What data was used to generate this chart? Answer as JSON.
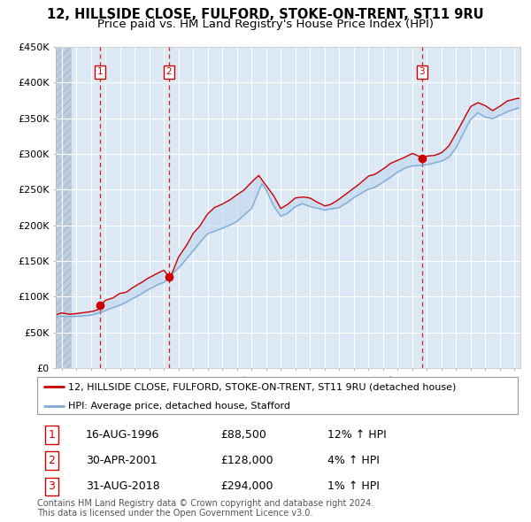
{
  "title": "12, HILLSIDE CLOSE, FULFORD, STOKE-ON-TRENT, ST11 9RU",
  "subtitle": "Price paid vs. HM Land Registry's House Price Index (HPI)",
  "ylim": [
    0,
    450000
  ],
  "yticks": [
    0,
    50000,
    100000,
    150000,
    200000,
    250000,
    300000,
    350000,
    400000,
    450000
  ],
  "ytick_labels": [
    "£0",
    "£50K",
    "£100K",
    "£150K",
    "£200K",
    "£250K",
    "£300K",
    "£350K",
    "£400K",
    "£450K"
  ],
  "xlim_start": 1993.6,
  "xlim_end": 2025.4,
  "xticks": [
    1994,
    1995,
    1996,
    1997,
    1998,
    1999,
    2000,
    2001,
    2002,
    2003,
    2004,
    2005,
    2006,
    2007,
    2008,
    2009,
    2010,
    2011,
    2012,
    2013,
    2014,
    2015,
    2016,
    2017,
    2018,
    2019,
    2020,
    2021,
    2022,
    2023,
    2024,
    2025
  ],
  "sale_dates": [
    1996.625,
    2001.33,
    2018.667
  ],
  "sale_prices": [
    88500,
    128000,
    294000
  ],
  "sale_labels": [
    "1",
    "2",
    "3"
  ],
  "legend_line1": "12, HILLSIDE CLOSE, FULFORD, STOKE-ON-TRENT, ST11 9RU (detached house)",
  "legend_line2": "HPI: Average price, detached house, Stafford",
  "table_rows": [
    [
      "1",
      "16-AUG-1996",
      "£88,500",
      "12% ↑ HPI"
    ],
    [
      "2",
      "30-APR-2001",
      "£128,000",
      "4% ↑ HPI"
    ],
    [
      "3",
      "31-AUG-2018",
      "£294,000",
      "1% ↑ HPI"
    ]
  ],
  "copyright_text": "Contains HM Land Registry data © Crown copyright and database right 2024.\nThis data is licensed under the Open Government Licence v3.0.",
  "red_line_color": "#cc0000",
  "blue_line_color": "#7dadd4",
  "blue_fill_color": "#c5d9f0",
  "dashed_line_color": "#cc0000",
  "bg_plot_color": "#dce9f5",
  "hatch_color": "#c0cfde",
  "grid_color": "#ffffff",
  "box_color": "#cc0000",
  "title_fontsize": 10.5,
  "subtitle_fontsize": 9.5,
  "tick_fontsize": 8,
  "legend_fontsize": 8,
  "table_fontsize": 9,
  "copyright_fontsize": 7
}
